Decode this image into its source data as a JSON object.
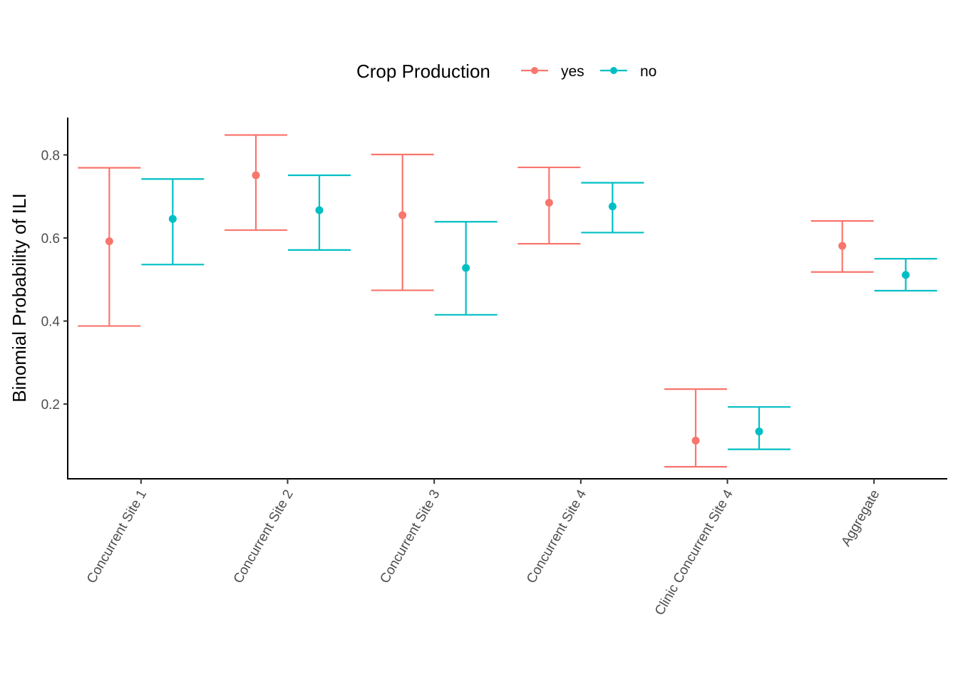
{
  "chart_data": {
    "type": "errorbar",
    "title": "",
    "xlabel": "",
    "ylabel": "Binomial Probability of ILI",
    "categories": [
      "Concurrent Site 1",
      "Concurrent Site 2",
      "Concurrent Site 3",
      "Concurrent Site 4",
      "Clinic Concurrent Site 4",
      "Aggregate"
    ],
    "ylim": [
      0.02,
      0.89
    ],
    "yticks": [
      0.2,
      0.4,
      0.6,
      0.8
    ],
    "ytick_labels": [
      "0.2",
      "0.4",
      "0.6",
      "0.8"
    ],
    "grid": false,
    "legend": {
      "title": "Crop Production",
      "position": "top"
    },
    "series": [
      {
        "name": "yes",
        "color": "#F8766D",
        "values": [
          0.592,
          0.751,
          0.655,
          0.685,
          0.112,
          0.581
        ],
        "lower": [
          0.388,
          0.619,
          0.474,
          0.586,
          0.049,
          0.518
        ],
        "upper": [
          0.769,
          0.848,
          0.801,
          0.77,
          0.236,
          0.641
        ]
      },
      {
        "name": "no",
        "color": "#00BFC4",
        "values": [
          0.646,
          0.667,
          0.528,
          0.676,
          0.134,
          0.511
        ],
        "lower": [
          0.536,
          0.571,
          0.415,
          0.613,
          0.091,
          0.473
        ],
        "upper": [
          0.742,
          0.751,
          0.639,
          0.733,
          0.193,
          0.55
        ]
      }
    ]
  }
}
